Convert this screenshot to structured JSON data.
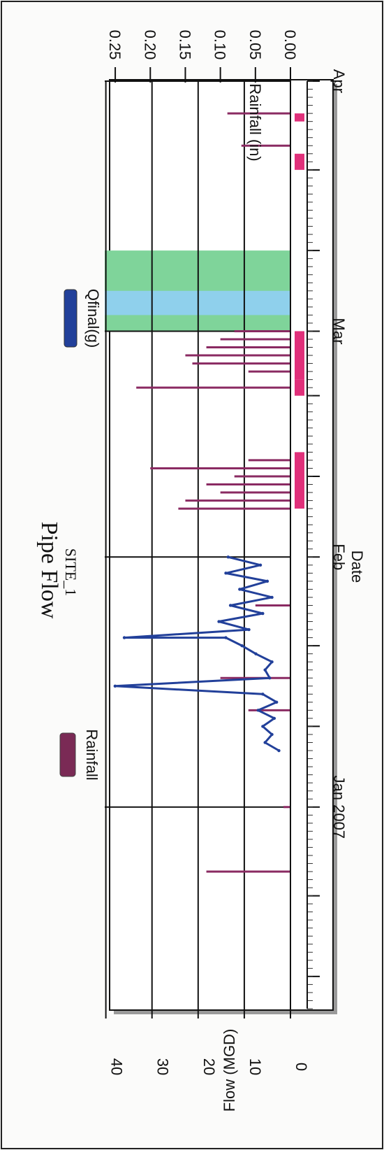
{
  "chart_data": {
    "type": "line",
    "title": "Pipe Flow",
    "subtitle": "SITE_1",
    "xlabel": "Date",
    "ylabel": "Flow (MGD)",
    "y2label": "Rainfall (in)",
    "x_ticks": [
      {
        "date": "2006-12-11",
        "label": ""
      },
      {
        "date": "2006-12-21",
        "label": ""
      },
      {
        "date": "2007-01-01",
        "label": "Jan 2007"
      },
      {
        "date": "2007-01-11",
        "label": ""
      },
      {
        "date": "2007-01-21",
        "label": ""
      },
      {
        "date": "2007-02-01",
        "label": "Feb"
      },
      {
        "date": "2007-02-11",
        "label": ""
      },
      {
        "date": "2007-02-21",
        "label": ""
      },
      {
        "date": "2007-03-01",
        "label": "Mar"
      },
      {
        "date": "2007-03-11",
        "label": ""
      },
      {
        "date": "2007-03-21",
        "label": ""
      },
      {
        "date": "2007-04-01",
        "label": "Apr"
      }
    ],
    "xlim": [
      "2006-12-07",
      "2007-04-01"
    ],
    "y_ticks": [
      0,
      10,
      20,
      30,
      40
    ],
    "ylim": [
      0,
      41
    ],
    "y2_ticks": [
      "0.00",
      "0.05",
      "0.10",
      "0.15",
      "0.20",
      "0.25"
    ],
    "y2lim": [
      0,
      0.27
    ],
    "grid": true,
    "legend": [
      {
        "name": "Rainfall",
        "color": "#7a2a55"
      },
      {
        "name": "Qfinal(g)",
        "color": "#22409a"
      }
    ],
    "series": [
      {
        "name": "Rainfall",
        "color": "#8a2a62",
        "style": "bars",
        "points": [
          {
            "date": "2006-12-24",
            "value": 0.12
          },
          {
            "date": "2007-01-01",
            "value": 0.01
          },
          {
            "date": "2007-01-13",
            "value": 0.06
          },
          {
            "date": "2007-01-17",
            "value": 0.1
          },
          {
            "date": "2007-01-26",
            "value": 0.05
          },
          {
            "date": "2007-02-07",
            "value": 0.16
          },
          {
            "date": "2007-02-08",
            "value": 0.15
          },
          {
            "date": "2007-02-09",
            "value": 0.1
          },
          {
            "date": "2007-02-10",
            "value": 0.12
          },
          {
            "date": "2007-02-11",
            "value": 0.08
          },
          {
            "date": "2007-02-12",
            "value": 0.2
          },
          {
            "date": "2007-02-13",
            "value": 0.06
          },
          {
            "date": "2007-02-22",
            "value": 0.22
          },
          {
            "date": "2007-02-24",
            "value": 0.06
          },
          {
            "date": "2007-02-25",
            "value": 0.14
          },
          {
            "date": "2007-02-26",
            "value": 0.15
          },
          {
            "date": "2007-02-27",
            "value": 0.12
          },
          {
            "date": "2007-02-28",
            "value": 0.1
          },
          {
            "date": "2007-03-01",
            "value": 0.08
          },
          {
            "date": "2007-03-24",
            "value": 0.07
          },
          {
            "date": "2007-03-28",
            "value": 0.09
          }
        ]
      },
      {
        "name": "Qfinal(g)",
        "color": "#22409a",
        "style": "line",
        "points": [
          {
            "date": "2007-01-08",
            "value": 2.5
          },
          {
            "date": "2007-01-09",
            "value": 5.5
          },
          {
            "date": "2007-01-10",
            "value": 4.0
          },
          {
            "date": "2007-01-11",
            "value": 6.0
          },
          {
            "date": "2007-01-12",
            "value": 3.5
          },
          {
            "date": "2007-01-13",
            "value": 7.0
          },
          {
            "date": "2007-01-14",
            "value": 3.0
          },
          {
            "date": "2007-01-15",
            "value": 6.0
          },
          {
            "date": "2007-01-16",
            "value": 38.0
          },
          {
            "date": "2007-01-17",
            "value": 4.5
          },
          {
            "date": "2007-01-18",
            "value": 5.5
          },
          {
            "date": "2007-01-19",
            "value": 4.0
          },
          {
            "date": "2007-01-20",
            "value": 7.5
          },
          {
            "date": "2007-01-21",
            "value": 10.5
          },
          {
            "date": "2007-01-22",
            "value": 14.0
          },
          {
            "date": "2007-01-22",
            "value": 36.0
          },
          {
            "date": "2007-01-23",
            "value": 9.0
          },
          {
            "date": "2007-01-24",
            "value": 15.5
          },
          {
            "date": "2007-01-25",
            "value": 6.0
          },
          {
            "date": "2007-01-26",
            "value": 13.0
          },
          {
            "date": "2007-01-27",
            "value": 4.0
          },
          {
            "date": "2007-01-28",
            "value": 11.0
          },
          {
            "date": "2007-01-29",
            "value": 5.0
          },
          {
            "date": "2007-01-30",
            "value": 14.0
          },
          {
            "date": "2007-01-31",
            "value": 6.5
          },
          {
            "date": "2007-02-01",
            "value": 13.5
          }
        ]
      }
    ],
    "shaded_ranges": [
      {
        "start": "2007-03-01",
        "end": "2007-03-11",
        "color": "#7fd49a"
      },
      {
        "start": "2007-03-03",
        "end": "2007-03-06",
        "color": "#8fd0ec"
      }
    ],
    "status_markers": [
      {
        "start": "2007-02-07",
        "end": "2007-02-14",
        "color": "#e0307a"
      },
      {
        "start": "2007-02-21",
        "end": "2007-02-23",
        "color": "#e0307a"
      },
      {
        "start": "2007-02-23",
        "end": "2007-03-01",
        "color": "#e0307a"
      },
      {
        "start": "2007-03-21",
        "end": "2007-03-23",
        "color": "#e0307a"
      },
      {
        "start": "2007-03-27",
        "end": "2007-03-28",
        "color": "#e0307a"
      }
    ]
  }
}
